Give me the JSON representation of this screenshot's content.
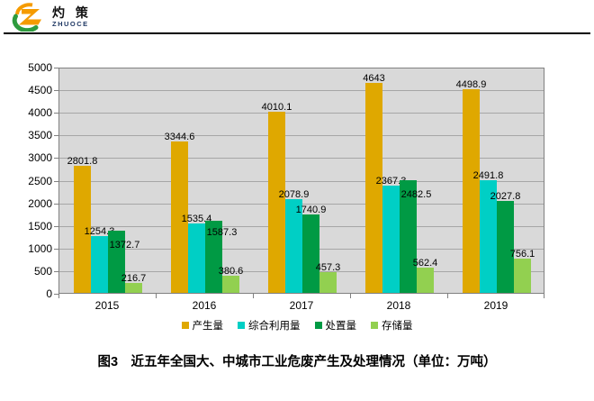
{
  "header": {
    "logo": {
      "icon": "z-swoosh-logo",
      "brand_cn": "灼 策",
      "brand_en": "ZHUOCE",
      "orange": "#F59B00",
      "green": "#2E9B3E",
      "navy": "#1F3864"
    }
  },
  "chart_data": {
    "type": "bar",
    "title": "图3　近五年全国大、中城市工业危废产生及处理情况（单位：万吨）",
    "categories": [
      "2015",
      "2016",
      "2017",
      "2018",
      "2019"
    ],
    "series": [
      {
        "name": "产生量",
        "color": "#DFA800",
        "values": [
          2801.8,
          3344.6,
          4010.1,
          4643,
          4498.9
        ]
      },
      {
        "name": "综合利用量",
        "color": "#00CFC5",
        "values": [
          1254.3,
          1535.4,
          2078.9,
          2367.3,
          2491.8
        ]
      },
      {
        "name": "处置量",
        "color": "#009A44",
        "values": [
          1372.7,
          1587.3,
          1740.9,
          2482.5,
          2027.8
        ]
      },
      {
        "name": "存储量",
        "color": "#92D050",
        "values": [
          216.7,
          380.6,
          457.3,
          562.4,
          756.1
        ]
      }
    ],
    "xlabel": "",
    "ylabel": "",
    "ylim": [
      0,
      5000
    ],
    "ytick_step": 500,
    "grid": true,
    "data_labels": true,
    "legend_position": "bottom",
    "plot_bg": "#D9D9D9",
    "gridline_color": "#A6A6A6",
    "axis_color": "#808080"
  },
  "caption": "图3　近五年全国大、中城市工业危废产生及处理情况（单位：万吨）"
}
